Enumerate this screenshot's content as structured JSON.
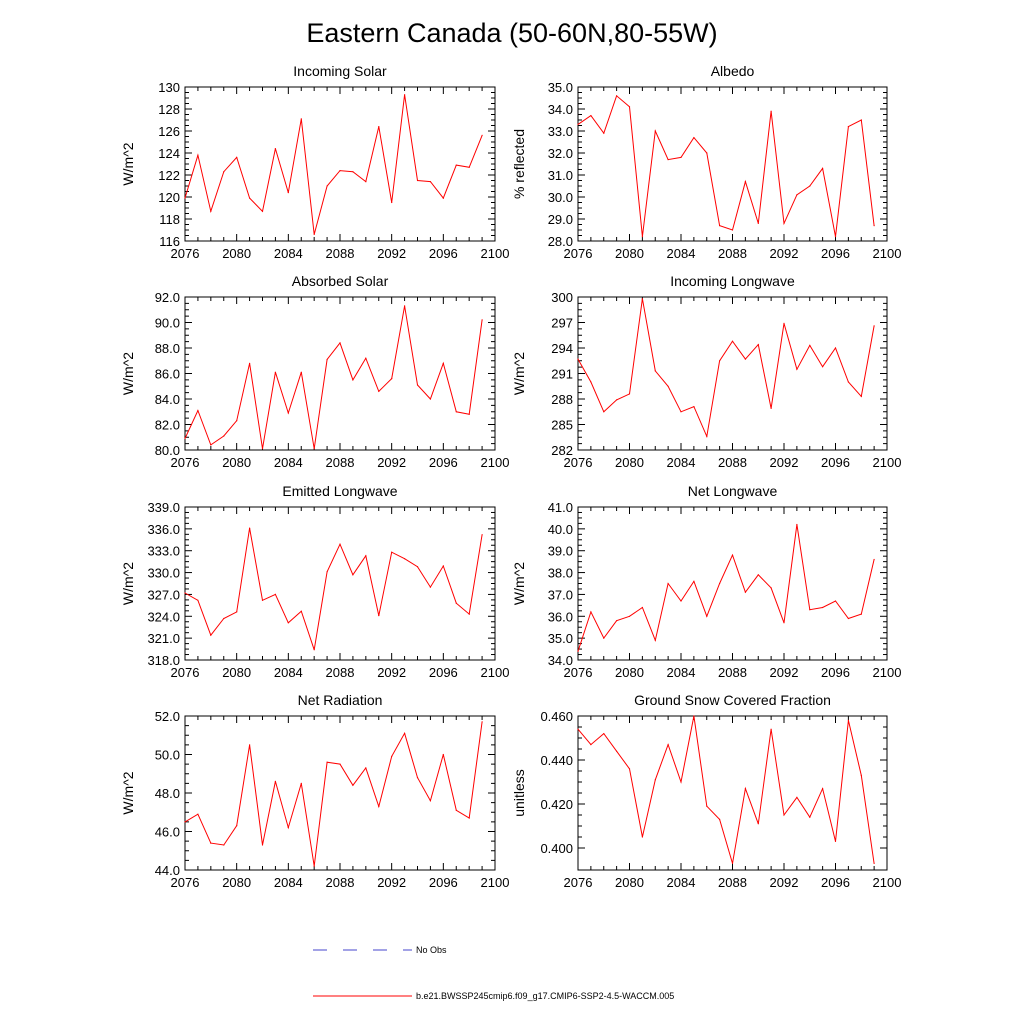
{
  "title": "Eastern Canada (50-60N,80-55W)",
  "colors": {
    "series": "#ff0000",
    "obs": "#4444cc",
    "axis": "#000000"
  },
  "legend": {
    "obs_label": "No Obs",
    "model_label": "b.e21.BWSSP245cmip6.f09_g17.CMIP6-SSP2-4.5-WACCM.005"
  },
  "chart_data": [
    {
      "type": "line",
      "title": "Incoming Solar",
      "ylabel": "W/m^2",
      "xlim": [
        2076,
        2100
      ],
      "ylim": [
        116,
        130
      ],
      "xticks": [
        "2076",
        "2080",
        "2084",
        "2088",
        "2092",
        "2096",
        "2100"
      ],
      "yticks": [
        "116",
        "118",
        "120",
        "122",
        "124",
        "126",
        "128",
        "130"
      ],
      "x": [
        2076,
        2077,
        2078,
        2079,
        2080,
        2081,
        2082,
        2083,
        2084,
        2085,
        2086,
        2087,
        2088,
        2089,
        2090,
        2091,
        2092,
        2093,
        2094,
        2095,
        2096,
        2097,
        2098,
        2099
      ],
      "values": [
        119.9,
        123.8,
        118.7,
        122.3,
        123.6,
        119.9,
        118.7,
        124.4,
        120.4,
        127.1,
        116.6,
        121.0,
        122.4,
        122.3,
        121.4,
        126.4,
        119.5,
        129.3,
        121.5,
        121.4,
        119.9,
        122.9,
        122.7,
        125.6
      ]
    },
    {
      "type": "line",
      "title": "Albedo",
      "ylabel": "% reflected",
      "xlim": [
        2076,
        2100
      ],
      "ylim": [
        28.0,
        35.0
      ],
      "xticks": [
        "2076",
        "2080",
        "2084",
        "2088",
        "2092",
        "2096",
        "2100"
      ],
      "yticks": [
        "28.0",
        "29.0",
        "30.0",
        "31.0",
        "32.0",
        "33.0",
        "34.0",
        "35.0"
      ],
      "x": [
        2076,
        2077,
        2078,
        2079,
        2080,
        2081,
        2082,
        2083,
        2084,
        2085,
        2086,
        2087,
        2088,
        2089,
        2090,
        2091,
        2092,
        2093,
        2094,
        2095,
        2096,
        2097,
        2098,
        2099
      ],
      "values": [
        33.3,
        33.7,
        32.9,
        34.6,
        34.1,
        28.2,
        33.0,
        31.7,
        31.8,
        32.7,
        32.0,
        28.7,
        28.5,
        30.7,
        28.8,
        33.9,
        28.8,
        30.1,
        30.5,
        31.3,
        28.2,
        33.2,
        33.5,
        28.7
      ]
    },
    {
      "type": "line",
      "title": "Absorbed Solar",
      "ylabel": "W/m^2",
      "xlim": [
        2076,
        2100
      ],
      "ylim": [
        80.0,
        92.0
      ],
      "xticks": [
        "2076",
        "2080",
        "2084",
        "2088",
        "2092",
        "2096",
        "2100"
      ],
      "yticks": [
        "80.0",
        "82.0",
        "84.0",
        "86.0",
        "88.0",
        "90.0",
        "92.0"
      ],
      "x": [
        2076,
        2077,
        2078,
        2079,
        2080,
        2081,
        2082,
        2083,
        2084,
        2085,
        2086,
        2087,
        2088,
        2089,
        2090,
        2091,
        2092,
        2093,
        2094,
        2095,
        2096,
        2097,
        2098,
        2099
      ],
      "values": [
        80.9,
        83.1,
        80.4,
        81.1,
        82.3,
        86.8,
        80.1,
        86.1,
        82.9,
        86.1,
        80.1,
        87.1,
        88.4,
        85.5,
        87.2,
        84.6,
        85.6,
        91.3,
        85.1,
        84.0,
        86.8,
        83.0,
        82.8,
        90.2
      ]
    },
    {
      "type": "line",
      "title": "Incoming Longwave",
      "ylabel": "W/m^2",
      "xlim": [
        2076,
        2100
      ],
      "ylim": [
        282,
        300
      ],
      "xticks": [
        "2076",
        "2080",
        "2084",
        "2088",
        "2092",
        "2096",
        "2100"
      ],
      "yticks": [
        "282",
        "285",
        "288",
        "291",
        "294",
        "297",
        "300"
      ],
      "x": [
        2076,
        2077,
        2078,
        2079,
        2080,
        2081,
        2082,
        2083,
        2084,
        2085,
        2086,
        2087,
        2088,
        2089,
        2090,
        2091,
        2092,
        2093,
        2094,
        2095,
        2096,
        2097,
        2098,
        2099
      ],
      "values": [
        292.7,
        290.0,
        286.5,
        287.9,
        288.6,
        299.8,
        291.3,
        289.5,
        286.5,
        287.1,
        283.6,
        292.5,
        294.8,
        292.7,
        294.4,
        286.9,
        296.9,
        291.5,
        294.3,
        291.8,
        294.0,
        290.0,
        288.3,
        296.6
      ]
    },
    {
      "type": "line",
      "title": "Emitted Longwave",
      "ylabel": "W/m^2",
      "xlim": [
        2076,
        2100
      ],
      "ylim": [
        318.0,
        339.0
      ],
      "xticks": [
        "2076",
        "2080",
        "2084",
        "2088",
        "2092",
        "2096",
        "2100"
      ],
      "yticks": [
        "318.0",
        "321.0",
        "324.0",
        "327.0",
        "330.0",
        "333.0",
        "336.0",
        "339.0"
      ],
      "x": [
        2076,
        2077,
        2078,
        2079,
        2080,
        2081,
        2082,
        2083,
        2084,
        2085,
        2086,
        2087,
        2088,
        2089,
        2090,
        2091,
        2092,
        2093,
        2094,
        2095,
        2096,
        2097,
        2098,
        2099
      ],
      "values": [
        327.2,
        326.2,
        321.4,
        323.7,
        324.6,
        336.1,
        326.2,
        327.0,
        323.1,
        324.7,
        319.4,
        330.1,
        333.9,
        329.7,
        332.3,
        324.1,
        332.8,
        331.9,
        330.8,
        328.0,
        330.9,
        325.8,
        324.3,
        335.2
      ]
    },
    {
      "type": "line",
      "title": "Net Longwave",
      "ylabel": "W/m^2",
      "xlim": [
        2076,
        2100
      ],
      "ylim": [
        34.0,
        41.0
      ],
      "xticks": [
        "2076",
        "2080",
        "2084",
        "2088",
        "2092",
        "2096",
        "2100"
      ],
      "yticks": [
        "34.0",
        "35.0",
        "36.0",
        "37.0",
        "38.0",
        "39.0",
        "40.0",
        "41.0"
      ],
      "x": [
        2076,
        2077,
        2078,
        2079,
        2080,
        2081,
        2082,
        2083,
        2084,
        2085,
        2086,
        2087,
        2088,
        2089,
        2090,
        2091,
        2092,
        2093,
        2094,
        2095,
        2096,
        2097,
        2098,
        2099
      ],
      "values": [
        34.4,
        36.2,
        35.0,
        35.8,
        36.0,
        36.4,
        34.9,
        37.5,
        36.7,
        37.6,
        36.0,
        37.5,
        38.8,
        37.1,
        37.9,
        37.3,
        35.7,
        40.2,
        36.3,
        36.4,
        36.7,
        35.9,
        36.1,
        38.6
      ]
    },
    {
      "type": "line",
      "title": "Net Radiation",
      "ylabel": "W/m^2",
      "xlim": [
        2076,
        2100
      ],
      "ylim": [
        44.0,
        52.0
      ],
      "xticks": [
        "2076",
        "2080",
        "2084",
        "2088",
        "2092",
        "2096",
        "2100"
      ],
      "yticks": [
        "44.0",
        "46.0",
        "48.0",
        "50.0",
        "52.0"
      ],
      "x": [
        2076,
        2077,
        2078,
        2079,
        2080,
        2081,
        2082,
        2083,
        2084,
        2085,
        2086,
        2087,
        2088,
        2089,
        2090,
        2091,
        2092,
        2093,
        2094,
        2095,
        2096,
        2097,
        2098,
        2099
      ],
      "values": [
        46.5,
        46.9,
        45.4,
        45.3,
        46.3,
        50.5,
        45.3,
        48.6,
        46.2,
        48.5,
        44.2,
        49.6,
        49.5,
        48.4,
        49.3,
        47.3,
        49.9,
        51.1,
        48.8,
        47.6,
        50.0,
        47.1,
        46.7,
        51.7
      ]
    },
    {
      "type": "line",
      "title": "Ground Snow Covered Fraction",
      "ylabel": "unitless",
      "xlim": [
        2076,
        2100
      ],
      "ylim": [
        0.39,
        0.46
      ],
      "xticks": [
        "2076",
        "2080",
        "2084",
        "2088",
        "2092",
        "2096",
        "2100"
      ],
      "yticks": [
        "0.400",
        "0.420",
        "0.440",
        "0.460"
      ],
      "ytick_values": [
        0.4,
        0.42,
        0.44,
        0.46
      ],
      "x": [
        2076,
        2077,
        2078,
        2079,
        2080,
        2081,
        2082,
        2083,
        2084,
        2085,
        2086,
        2087,
        2088,
        2089,
        2090,
        2091,
        2092,
        2093,
        2094,
        2095,
        2096,
        2097,
        2098,
        2099
      ],
      "values": [
        0.454,
        0.447,
        0.452,
        0.444,
        0.436,
        0.405,
        0.431,
        0.447,
        0.43,
        0.46,
        0.419,
        0.413,
        0.393,
        0.427,
        0.411,
        0.454,
        0.415,
        0.423,
        0.414,
        0.427,
        0.403,
        0.458,
        0.433,
        0.393
      ]
    }
  ]
}
